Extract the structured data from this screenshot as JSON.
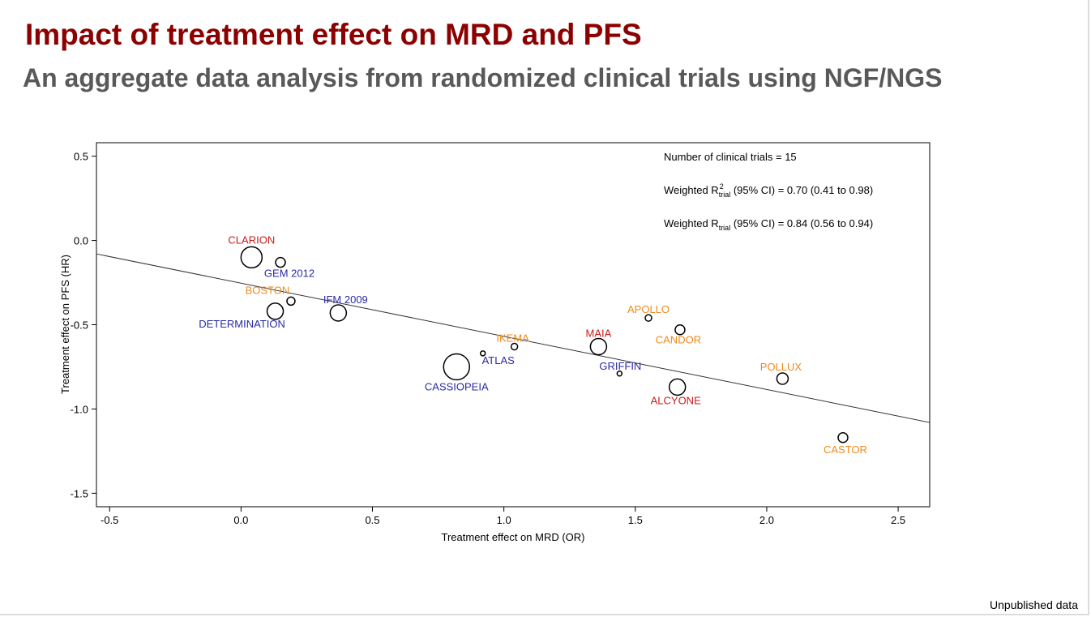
{
  "slide": {
    "title": "Impact of treatment effect on MRD and PFS",
    "subtitle": "An aggregate data analysis from randomized clinical trials using NGF/NGS",
    "footnote": "Unpublished data",
    "title_color": "#8b0000",
    "subtitle_color": "#595959"
  },
  "chart_data": {
    "type": "scatter",
    "xlabel": "Treatment effect on MRD (OR)",
    "ylabel": "Treatment effect on PFS (HR)",
    "xlim": [
      -0.55,
      2.62
    ],
    "ylim": [
      -1.58,
      0.58
    ],
    "x_ticks": [
      -0.5,
      0.0,
      0.5,
      1.0,
      1.5,
      2.0,
      2.5
    ],
    "y_ticks": [
      0.5,
      0.0,
      -0.5,
      -1.0,
      -1.5
    ],
    "x_tick_labels": [
      "-0.5",
      "0.0",
      "0.5",
      "1.0",
      "1.5",
      "2.0",
      "2.5"
    ],
    "y_tick_labels": [
      "0.5",
      "0.0",
      "-0.5",
      "-1.0",
      "-1.5"
    ],
    "grid": false,
    "colors": {
      "red": "#cc1a1a",
      "blue": "#2a2aa8",
      "orange": "#ee8a1c"
    },
    "regression_line": {
      "x": [
        -0.55,
        2.62
      ],
      "y": [
        -0.08,
        -1.08
      ]
    },
    "annotations": [
      {
        "name": "annotation-trial-count",
        "parts": [
          {
            "text": "Number of clinical trials = 15"
          }
        ]
      },
      {
        "name": "annotation-weighted-r2",
        "parts": [
          {
            "text": "Weighted R"
          },
          {
            "text": "2",
            "style": "sup"
          },
          {
            "text": "trial",
            "style": "sub"
          },
          {
            "text": " (95% CI) = 0.70 (0.41 to 0.98)"
          }
        ]
      },
      {
        "name": "annotation-weighted-r",
        "parts": [
          {
            "text": "Weighted R"
          },
          {
            "text": "trial",
            "style": "sub"
          },
          {
            "text": " (95% CI) = 0.84 (0.56 to 0.94)"
          }
        ]
      }
    ],
    "points": [
      {
        "label": "CLARION",
        "x": 0.04,
        "y": -0.1,
        "size": 13,
        "color": "red",
        "label_dx": 0,
        "label_dy": -17,
        "anchor": "middle"
      },
      {
        "label": "GEM 2012",
        "x": 0.15,
        "y": -0.13,
        "size": 6,
        "color": "blue",
        "label_dx": 11,
        "label_dy": 18,
        "anchor": "middle"
      },
      {
        "label": "BOSTON",
        "x": 0.19,
        "y": -0.36,
        "size": 5,
        "color": "orange",
        "label_dx": -29,
        "label_dy": -9,
        "anchor": "middle"
      },
      {
        "label": "DETERMINATION",
        "x": 0.13,
        "y": -0.42,
        "size": 10,
        "color": "blue",
        "label_dx": -41,
        "label_dy": 20,
        "anchor": "middle"
      },
      {
        "label": "IFM 2009",
        "x": 0.37,
        "y": -0.43,
        "size": 10,
        "color": "blue",
        "label_dx": 9,
        "label_dy": -12,
        "anchor": "middle"
      },
      {
        "label": "IKEMA",
        "x": 1.04,
        "y": -0.63,
        "size": 4,
        "color": "orange",
        "label_dx": -2,
        "label_dy": -6,
        "anchor": "middle"
      },
      {
        "label": "ATLAS",
        "x": 0.92,
        "y": -0.67,
        "size": 3,
        "color": "blue",
        "label_dx": 19,
        "label_dy": 13,
        "anchor": "middle"
      },
      {
        "label": "CASSIOPEIA",
        "x": 0.82,
        "y": -0.75,
        "size": 16,
        "color": "blue",
        "label_dx": 0,
        "label_dy": 29,
        "anchor": "middle"
      },
      {
        "label": "APOLLO",
        "x": 1.55,
        "y": -0.46,
        "size": 4,
        "color": "orange",
        "label_dx": 0,
        "label_dy": -6,
        "anchor": "middle"
      },
      {
        "label": "CANDOR",
        "x": 1.67,
        "y": -0.53,
        "size": 6,
        "color": "orange",
        "label_dx": -2,
        "label_dy": 17,
        "anchor": "middle"
      },
      {
        "label": "MAIA",
        "x": 1.36,
        "y": -0.63,
        "size": 10,
        "color": "red",
        "label_dx": 0,
        "label_dy": -12,
        "anchor": "middle"
      },
      {
        "label": "GRIFFIN",
        "x": 1.44,
        "y": -0.79,
        "size": 3,
        "color": "blue",
        "label_dx": 1,
        "label_dy": -5,
        "anchor": "middle"
      },
      {
        "label": "ALCYONE",
        "x": 1.66,
        "y": -0.87,
        "size": 10,
        "color": "red",
        "label_dx": -2,
        "label_dy": 21,
        "anchor": "middle"
      },
      {
        "label": "POLLUX",
        "x": 2.06,
        "y": -0.82,
        "size": 7,
        "color": "orange",
        "label_dx": -2,
        "label_dy": -10,
        "anchor": "middle"
      },
      {
        "label": "CASTOR",
        "x": 2.29,
        "y": -1.17,
        "size": 6,
        "color": "orange",
        "label_dx": 3,
        "label_dy": 19,
        "anchor": "middle"
      }
    ]
  }
}
